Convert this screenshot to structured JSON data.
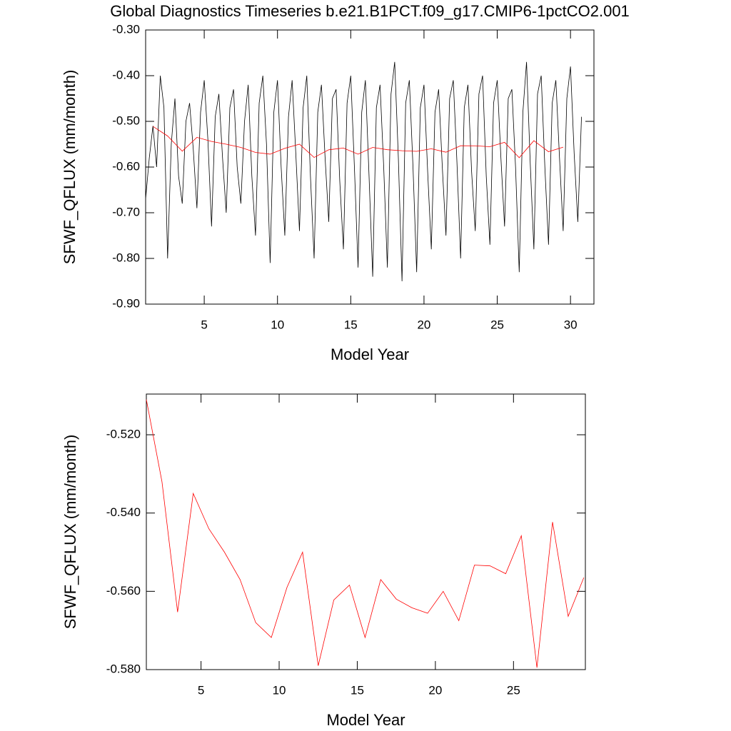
{
  "chart_data": [
    {
      "type": "line",
      "title": "Global Diagnostics Timeseries b.e21.B1PCT.f09_g17.CMIP6-1pctCO2.001",
      "xlabel": "Model Year",
      "ylabel": "SFWF_QFLUX (mm/month)",
      "xlim": [
        1,
        31.6
      ],
      "xticks": [
        5,
        10,
        15,
        20,
        25,
        30
      ],
      "ylim": [
        -0.9,
        -0.3
      ],
      "yticks": [
        {
          "value": -0.9,
          "label": "-0.90"
        },
        {
          "value": -0.8,
          "label": "-0.80"
        },
        {
          "value": -0.7,
          "label": "-0.70"
        },
        {
          "value": -0.6,
          "label": "-0.60"
        },
        {
          "value": -0.5,
          "label": "-0.50"
        },
        {
          "value": -0.4,
          "label": "-0.40"
        },
        {
          "value": -0.3,
          "label": "-0.30"
        }
      ],
      "series": [
        {
          "color": "#000000",
          "x": [
            1,
            1.25,
            1.5,
            1.75,
            2,
            2.25,
            2.5,
            2.75,
            3,
            3.25,
            3.5,
            3.75,
            4,
            4.25,
            4.5,
            4.75,
            5,
            5.25,
            5.5,
            5.75,
            6,
            6.25,
            6.5,
            6.75,
            7,
            7.25,
            7.5,
            7.75,
            8,
            8.25,
            8.5,
            8.75,
            9,
            9.25,
            9.5,
            9.75,
            10,
            10.25,
            10.5,
            10.75,
            11,
            11.25,
            11.5,
            11.75,
            12,
            12.25,
            12.5,
            12.75,
            13,
            13.25,
            13.5,
            13.75,
            14,
            14.25,
            14.5,
            14.75,
            15,
            15.25,
            15.5,
            15.75,
            16,
            16.25,
            16.5,
            16.75,
            17,
            17.25,
            17.5,
            17.75,
            18,
            18.25,
            18.5,
            18.75,
            19,
            19.25,
            19.5,
            19.75,
            20,
            20.25,
            20.5,
            20.75,
            21,
            21.25,
            21.5,
            21.75,
            22,
            22.25,
            22.5,
            22.75,
            23,
            23.25,
            23.5,
            23.75,
            24,
            24.25,
            24.5,
            24.75,
            25,
            25.25,
            25.5,
            25.75,
            26,
            26.25,
            26.5,
            26.75,
            27,
            27.25,
            27.5,
            27.75,
            28,
            28.25,
            28.5,
            28.75,
            29,
            29.25,
            29.5,
            29.75,
            30,
            30.25,
            30.5,
            30.75
          ],
          "values": [
            -0.67,
            -0.58,
            -0.51,
            -0.6,
            -0.4,
            -0.47,
            -0.8,
            -0.55,
            -0.45,
            -0.62,
            -0.68,
            -0.5,
            -0.46,
            -0.56,
            -0.69,
            -0.48,
            -0.41,
            -0.54,
            -0.73,
            -0.49,
            -0.44,
            -0.58,
            -0.7,
            -0.47,
            -0.43,
            -0.6,
            -0.68,
            -0.5,
            -0.42,
            -0.62,
            -0.75,
            -0.46,
            -0.4,
            -0.55,
            -0.81,
            -0.48,
            -0.41,
            -0.6,
            -0.75,
            -0.49,
            -0.41,
            -0.57,
            -0.74,
            -0.47,
            -0.4,
            -0.62,
            -0.8,
            -0.48,
            -0.42,
            -0.58,
            -0.72,
            -0.45,
            -0.43,
            -0.63,
            -0.78,
            -0.46,
            -0.4,
            -0.6,
            -0.82,
            -0.48,
            -0.41,
            -0.62,
            -0.84,
            -0.47,
            -0.42,
            -0.6,
            -0.82,
            -0.44,
            -0.37,
            -0.58,
            -0.85,
            -0.46,
            -0.41,
            -0.6,
            -0.83,
            -0.47,
            -0.42,
            -0.61,
            -0.78,
            -0.48,
            -0.43,
            -0.6,
            -0.75,
            -0.45,
            -0.41,
            -0.59,
            -0.8,
            -0.47,
            -0.42,
            -0.61,
            -0.74,
            -0.44,
            -0.4,
            -0.62,
            -0.77,
            -0.46,
            -0.41,
            -0.58,
            -0.73,
            -0.45,
            -0.43,
            -0.6,
            -0.83,
            -0.48,
            -0.37,
            -0.59,
            -0.78,
            -0.44,
            -0.4,
            -0.6,
            -0.77,
            -0.46,
            -0.41,
            -0.58,
            -0.74,
            -0.45,
            -0.38,
            -0.57,
            -0.72,
            -0.49
          ]
        },
        {
          "color": "#ff0000",
          "x": [
            1.5,
            2.5,
            3.5,
            4.5,
            5.5,
            6.5,
            7.5,
            8.5,
            9.5,
            10.5,
            11.5,
            12.5,
            13.5,
            14.5,
            15.5,
            16.5,
            17.5,
            18.5,
            19.5,
            20.5,
            21.5,
            22.5,
            23.5,
            24.5,
            25.5,
            26.5,
            27.5,
            28.5,
            29.5
          ],
          "values": [
            -0.511,
            -0.532,
            -0.5653,
            -0.535,
            -0.544,
            -0.55,
            -0.557,
            -0.568,
            -0.5718,
            -0.559,
            -0.55,
            -0.579,
            -0.5622,
            -0.5584,
            -0.5718,
            -0.557,
            -0.562,
            -0.5642,
            -0.5656,
            -0.56,
            -0.5675,
            -0.5533,
            -0.5535,
            -0.5555,
            -0.5458,
            -0.5795,
            -0.5423,
            -0.5664,
            -0.5565
          ]
        }
      ]
    },
    {
      "type": "line",
      "xlabel": "Model Year",
      "ylabel": "SFWF_QFLUX (mm/month)",
      "xlim": [
        1.5,
        29.6
      ],
      "xticks": [
        5,
        10,
        15,
        20,
        25
      ],
      "ylim": [
        -0.58,
        -0.5096
      ],
      "yticks": [
        {
          "value": -0.58,
          "label": "-0.580"
        },
        {
          "value": -0.56,
          "label": "-0.560"
        },
        {
          "value": -0.54,
          "label": "-0.540"
        },
        {
          "value": -0.52,
          "label": "-0.520"
        }
      ],
      "series": [
        {
          "color": "#ff0000",
          "x": [
            1.5,
            2.5,
            3.5,
            4.5,
            5.5,
            6.5,
            7.5,
            8.5,
            9.5,
            10.5,
            11.5,
            12.5,
            13.5,
            14.5,
            15.5,
            16.5,
            17.5,
            18.5,
            19.5,
            20.5,
            21.5,
            22.5,
            23.5,
            24.5,
            25.5,
            26.5,
            27.5,
            28.5,
            29.5
          ],
          "values": [
            -0.511,
            -0.532,
            -0.5653,
            -0.535,
            -0.544,
            -0.55,
            -0.557,
            -0.568,
            -0.5718,
            -0.559,
            -0.55,
            -0.579,
            -0.5622,
            -0.5584,
            -0.5718,
            -0.557,
            -0.562,
            -0.5642,
            -0.5656,
            -0.56,
            -0.5675,
            -0.5533,
            -0.5535,
            -0.5555,
            -0.5458,
            -0.5795,
            -0.5423,
            -0.5664,
            -0.5565
          ]
        }
      ]
    }
  ]
}
